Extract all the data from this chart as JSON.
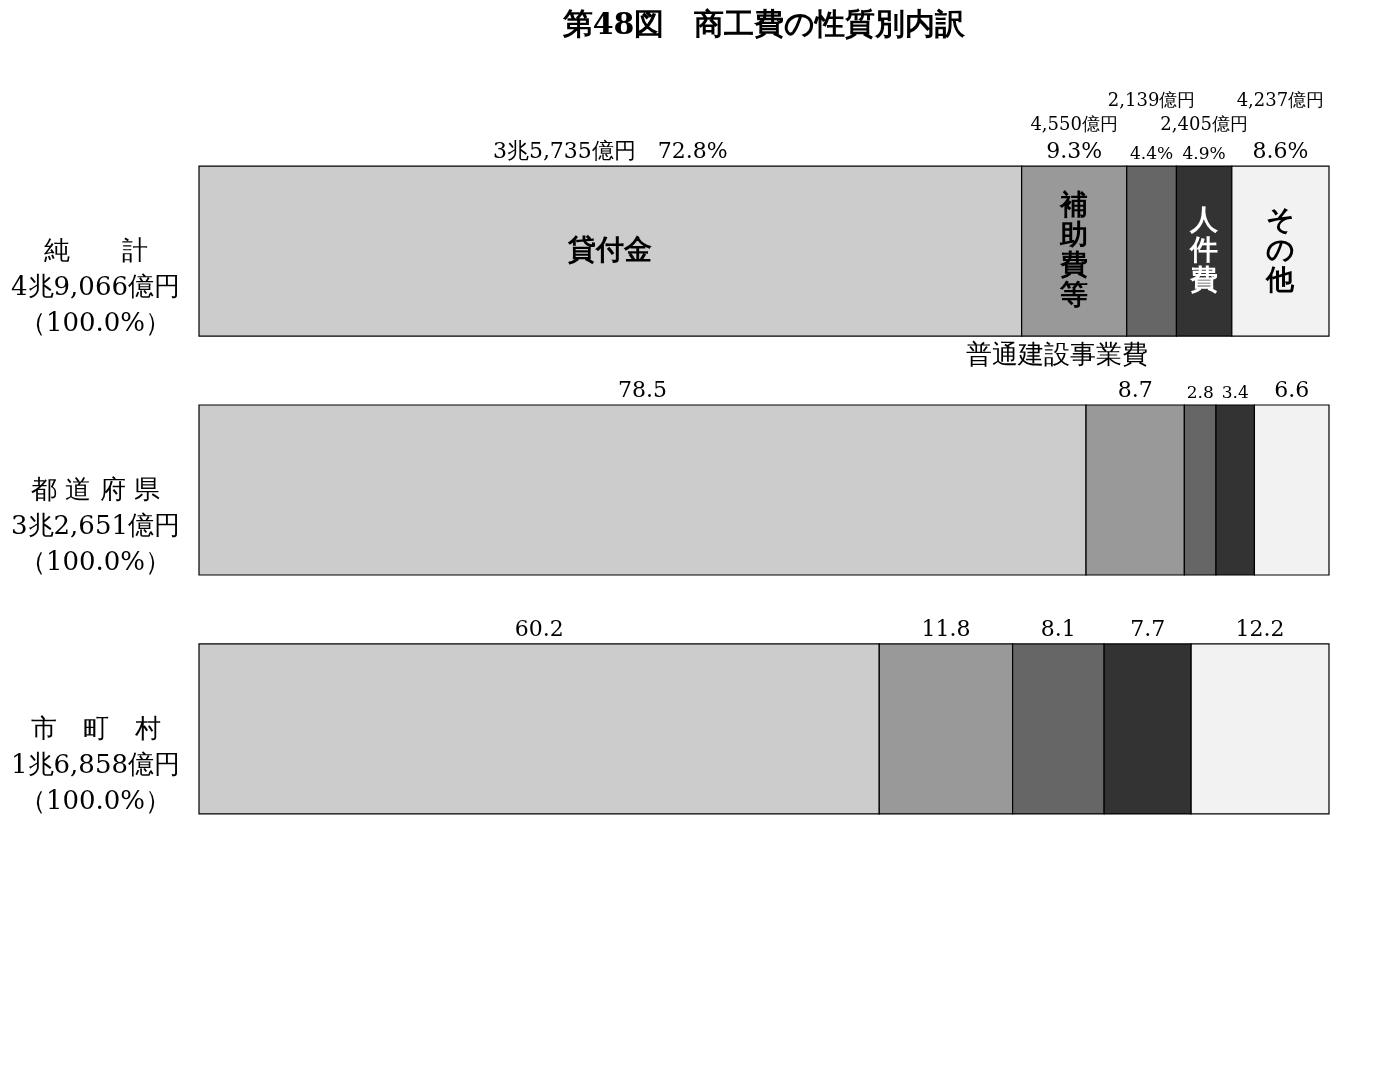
{
  "chart_data": {
    "type": "bar",
    "orientation": "horizontal",
    "stacked": true,
    "title": "第48図　商工費の性質別内訳",
    "categories": [
      "純　　計4兆9,066億円（100.0%）",
      "都 道 府 県3兆2,651億円（100.0%）",
      "市　町　村1兆6,858億円（100.0%）"
    ],
    "series": [
      {
        "name": "貸付金",
        "color": "#cccccc",
        "values": [
          72.8,
          78.5,
          60.2
        ],
        "value_labels": [
          "3兆5,735億円　72.8%",
          "78.5",
          "60.2"
        ]
      },
      {
        "name": "補助費等",
        "color": "#999999",
        "values": [
          9.3,
          8.7,
          11.8
        ],
        "value_labels": [
          "9.3%",
          "8.7",
          "11.8"
        ]
      },
      {
        "name": "普通建設事業費",
        "color": "#666666",
        "values": [
          4.4,
          2.8,
          8.1
        ],
        "value_labels": [
          "4.4%",
          "2.8",
          "8.1"
        ]
      },
      {
        "name": "人件費",
        "color": "#333333",
        "values": [
          4.9,
          3.4,
          7.7
        ],
        "value_labels": [
          "4.9%",
          "3.4",
          "7.7"
        ]
      },
      {
        "name": "その他",
        "color": "#f2f2f2",
        "values": [
          8.6,
          6.6,
          12.2
        ],
        "value_labels": [
          "8.6%",
          "6.6",
          "12.2"
        ]
      }
    ],
    "annotations": [
      "4,550億円",
      "2,139億円",
      "2,405億円",
      "4,237億円"
    ],
    "xlim": [
      0,
      100
    ],
    "tick_labels": "y",
    "legend": false,
    "grid": false
  }
}
